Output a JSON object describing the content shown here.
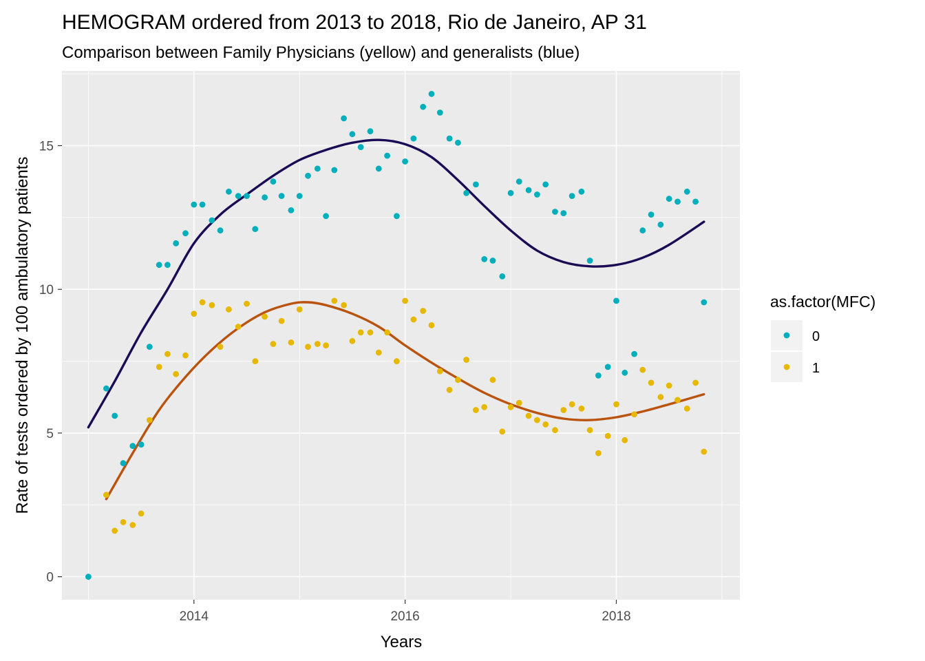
{
  "chart_data": {
    "type": "scatter",
    "title": "HEMOGRAM ordered from 2013 to 2018, Rio de Janeiro, AP 31",
    "subtitle": "Comparison between Family Physicians (yellow) and generalists (blue)",
    "xlabel": "Years",
    "ylabel": "Rate of tests ordered by 100 ambulatory patients",
    "xlim": [
      2012.75,
      2019.17
    ],
    "ylim": [
      -0.8,
      17.6
    ],
    "x_ticks": [
      2014,
      2016,
      2018
    ],
    "x_tick_labels": [
      "2014",
      "2016",
      "2018"
    ],
    "y_ticks": [
      0,
      5,
      10,
      15
    ],
    "y_tick_labels": [
      "0",
      "5",
      "10",
      "15"
    ],
    "grid": true,
    "legend": {
      "title": "as.factor(MFC)",
      "position": "right"
    },
    "series": [
      {
        "name": "0",
        "color": "#00AFBB",
        "smooth_color": "#1B0A54",
        "points": [
          [
            2013.0,
            0.0
          ],
          [
            2013.17,
            6.55
          ],
          [
            2013.25,
            5.6
          ],
          [
            2013.33,
            3.95
          ],
          [
            2013.42,
            4.55
          ],
          [
            2013.5,
            4.6
          ],
          [
            2013.58,
            8.0
          ],
          [
            2013.67,
            10.85
          ],
          [
            2013.75,
            10.85
          ],
          [
            2013.83,
            11.6
          ],
          [
            2013.92,
            11.95
          ],
          [
            2014.0,
            12.95
          ],
          [
            2014.08,
            12.95
          ],
          [
            2014.17,
            12.4
          ],
          [
            2014.25,
            12.05
          ],
          [
            2014.33,
            13.4
          ],
          [
            2014.42,
            13.25
          ],
          [
            2014.5,
            13.25
          ],
          [
            2014.58,
            12.1
          ],
          [
            2014.67,
            13.2
          ],
          [
            2014.75,
            13.75
          ],
          [
            2014.83,
            13.25
          ],
          [
            2014.92,
            12.75
          ],
          [
            2015.0,
            13.25
          ],
          [
            2015.08,
            13.95
          ],
          [
            2015.17,
            14.2
          ],
          [
            2015.25,
            12.55
          ],
          [
            2015.33,
            14.15
          ],
          [
            2015.42,
            15.95
          ],
          [
            2015.5,
            15.4
          ],
          [
            2015.58,
            14.95
          ],
          [
            2015.67,
            15.5
          ],
          [
            2015.75,
            14.2
          ],
          [
            2015.83,
            14.65
          ],
          [
            2015.92,
            12.55
          ],
          [
            2016.0,
            14.45
          ],
          [
            2016.08,
            15.25
          ],
          [
            2016.17,
            16.35
          ],
          [
            2016.25,
            16.8
          ],
          [
            2016.33,
            16.15
          ],
          [
            2016.42,
            15.25
          ],
          [
            2016.5,
            15.1
          ],
          [
            2016.58,
            13.35
          ],
          [
            2016.67,
            13.65
          ],
          [
            2016.75,
            11.05
          ],
          [
            2016.83,
            11.0
          ],
          [
            2016.92,
            10.45
          ],
          [
            2017.0,
            13.35
          ],
          [
            2017.08,
            13.75
          ],
          [
            2017.17,
            13.45
          ],
          [
            2017.25,
            13.3
          ],
          [
            2017.33,
            13.65
          ],
          [
            2017.42,
            12.7
          ],
          [
            2017.5,
            12.65
          ],
          [
            2017.58,
            13.25
          ],
          [
            2017.67,
            13.4
          ],
          [
            2017.75,
            11.0
          ],
          [
            2017.83,
            7.0
          ],
          [
            2017.92,
            7.3
          ],
          [
            2018.0,
            9.6
          ],
          [
            2018.08,
            7.1
          ],
          [
            2018.17,
            7.75
          ],
          [
            2018.25,
            12.05
          ],
          [
            2018.33,
            12.6
          ],
          [
            2018.42,
            12.25
          ],
          [
            2018.5,
            13.15
          ],
          [
            2018.58,
            13.05
          ],
          [
            2018.67,
            13.4
          ],
          [
            2018.75,
            13.05
          ],
          [
            2018.83,
            9.55
          ]
        ],
        "smooth": [
          [
            2013.0,
            5.2
          ],
          [
            2013.25,
            6.8
          ],
          [
            2013.5,
            8.5
          ],
          [
            2013.75,
            10.0
          ],
          [
            2014.0,
            11.6
          ],
          [
            2014.25,
            12.6
          ],
          [
            2014.5,
            13.3
          ],
          [
            2014.75,
            13.95
          ],
          [
            2015.0,
            14.5
          ],
          [
            2015.25,
            14.85
          ],
          [
            2015.5,
            15.1
          ],
          [
            2015.75,
            15.2
          ],
          [
            2016.0,
            15.05
          ],
          [
            2016.25,
            14.6
          ],
          [
            2016.5,
            13.8
          ],
          [
            2016.75,
            12.9
          ],
          [
            2017.0,
            12.05
          ],
          [
            2017.25,
            11.35
          ],
          [
            2017.5,
            10.95
          ],
          [
            2017.75,
            10.8
          ],
          [
            2018.0,
            10.85
          ],
          [
            2018.25,
            11.1
          ],
          [
            2018.5,
            11.55
          ],
          [
            2018.83,
            12.35
          ]
        ]
      },
      {
        "name": "1",
        "color": "#E7B800",
        "smooth_color": "#B9530E",
        "points": [
          [
            2013.17,
            2.85
          ],
          [
            2013.25,
            1.6
          ],
          [
            2013.33,
            1.9
          ],
          [
            2013.42,
            1.8
          ],
          [
            2013.5,
            2.2
          ],
          [
            2013.58,
            5.45
          ],
          [
            2013.67,
            7.3
          ],
          [
            2013.75,
            7.75
          ],
          [
            2013.83,
            7.05
          ],
          [
            2013.92,
            7.7
          ],
          [
            2014.0,
            9.15
          ],
          [
            2014.08,
            9.55
          ],
          [
            2014.17,
            9.45
          ],
          [
            2014.25,
            8.0
          ],
          [
            2014.33,
            9.3
          ],
          [
            2014.42,
            8.7
          ],
          [
            2014.5,
            9.5
          ],
          [
            2014.58,
            7.5
          ],
          [
            2014.67,
            9.05
          ],
          [
            2014.75,
            8.1
          ],
          [
            2014.83,
            8.9
          ],
          [
            2014.92,
            8.15
          ],
          [
            2015.0,
            9.3
          ],
          [
            2015.08,
            8.0
          ],
          [
            2015.17,
            8.1
          ],
          [
            2015.25,
            8.05
          ],
          [
            2015.33,
            9.6
          ],
          [
            2015.42,
            9.45
          ],
          [
            2015.5,
            8.2
          ],
          [
            2015.58,
            8.5
          ],
          [
            2015.67,
            8.5
          ],
          [
            2015.75,
            7.8
          ],
          [
            2015.83,
            8.5
          ],
          [
            2015.92,
            7.5
          ],
          [
            2016.0,
            9.6
          ],
          [
            2016.08,
            8.95
          ],
          [
            2016.17,
            9.25
          ],
          [
            2016.25,
            8.75
          ],
          [
            2016.33,
            7.15
          ],
          [
            2016.42,
            6.5
          ],
          [
            2016.5,
            6.85
          ],
          [
            2016.58,
            7.55
          ],
          [
            2016.67,
            5.8
          ],
          [
            2016.75,
            5.9
          ],
          [
            2016.83,
            6.85
          ],
          [
            2016.92,
            5.05
          ],
          [
            2017.0,
            5.9
          ],
          [
            2017.08,
            6.05
          ],
          [
            2017.17,
            5.6
          ],
          [
            2017.25,
            5.45
          ],
          [
            2017.33,
            5.3
          ],
          [
            2017.42,
            5.1
          ],
          [
            2017.5,
            5.8
          ],
          [
            2017.58,
            6.0
          ],
          [
            2017.67,
            5.85
          ],
          [
            2017.75,
            5.1
          ],
          [
            2017.83,
            4.3
          ],
          [
            2017.92,
            4.9
          ],
          [
            2018.0,
            6.0
          ],
          [
            2018.08,
            4.75
          ],
          [
            2018.17,
            5.65
          ],
          [
            2018.25,
            7.2
          ],
          [
            2018.33,
            6.75
          ],
          [
            2018.42,
            6.25
          ],
          [
            2018.5,
            6.65
          ],
          [
            2018.58,
            6.15
          ],
          [
            2018.67,
            5.85
          ],
          [
            2018.75,
            6.75
          ],
          [
            2018.83,
            4.35
          ]
        ],
        "smooth": [
          [
            2013.17,
            2.7
          ],
          [
            2013.42,
            4.3
          ],
          [
            2013.67,
            5.8
          ],
          [
            2013.92,
            6.95
          ],
          [
            2014.17,
            7.9
          ],
          [
            2014.42,
            8.65
          ],
          [
            2014.67,
            9.2
          ],
          [
            2014.92,
            9.5
          ],
          [
            2015.08,
            9.55
          ],
          [
            2015.25,
            9.45
          ],
          [
            2015.5,
            9.15
          ],
          [
            2015.75,
            8.7
          ],
          [
            2016.0,
            8.05
          ],
          [
            2016.25,
            7.45
          ],
          [
            2016.5,
            6.9
          ],
          [
            2016.75,
            6.4
          ],
          [
            2017.0,
            6.0
          ],
          [
            2017.25,
            5.7
          ],
          [
            2017.5,
            5.5
          ],
          [
            2017.75,
            5.45
          ],
          [
            2018.0,
            5.55
          ],
          [
            2018.25,
            5.75
          ],
          [
            2018.5,
            6.0
          ],
          [
            2018.83,
            6.35
          ]
        ]
      }
    ]
  }
}
